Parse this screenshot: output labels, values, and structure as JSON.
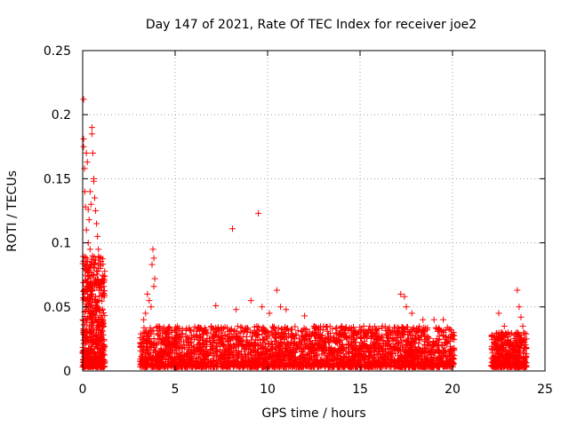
{
  "chart_data": {
    "type": "scatter",
    "title": "Day 147 of 2021, Rate Of TEC Index for receiver joe2",
    "xlabel": "GPS time / hours",
    "ylabel": "ROTI / TECUs",
    "xlim": [
      0,
      25
    ],
    "ylim": [
      0,
      0.25
    ],
    "x_ticks": [
      0,
      5,
      10,
      15,
      20,
      25
    ],
    "x_tick_labels": [
      "0",
      "5",
      "10",
      "15",
      "20",
      "25"
    ],
    "y_ticks": [
      0,
      0.05,
      0.1,
      0.15,
      0.2,
      0.25
    ],
    "y_tick_labels": [
      "0",
      "0.05",
      "0.1",
      "0.15",
      "0.2",
      "0.25"
    ],
    "grid": true,
    "marker": "+",
    "color": "#ff0000",
    "series": [
      {
        "name": "ROTI",
        "points": [
          [
            0.05,
            0.212
          ],
          [
            0.05,
            0.181
          ],
          [
            0.05,
            0.175
          ],
          [
            0.1,
            0.158
          ],
          [
            0.12,
            0.14
          ],
          [
            0.15,
            0.128
          ],
          [
            0.2,
            0.17
          ],
          [
            0.25,
            0.163
          ],
          [
            0.3,
            0.126
          ],
          [
            0.35,
            0.118
          ],
          [
            0.4,
            0.14
          ],
          [
            0.45,
            0.13
          ],
          [
            0.5,
            0.19
          ],
          [
            0.5,
            0.185
          ],
          [
            0.55,
            0.17
          ],
          [
            0.6,
            0.148
          ],
          [
            0.6,
            0.15
          ],
          [
            0.65,
            0.135
          ],
          [
            0.7,
            0.125
          ],
          [
            0.75,
            0.115
          ],
          [
            0.8,
            0.105
          ],
          [
            0.85,
            0.095
          ],
          [
            0.9,
            0.088
          ],
          [
            0.95,
            0.08
          ],
          [
            0.2,
            0.11
          ],
          [
            0.3,
            0.1
          ],
          [
            0.4,
            0.095
          ],
          [
            0.5,
            0.085
          ],
          [
            0.6,
            0.075
          ],
          [
            0.7,
            0.07
          ],
          [
            0.1,
            0.06
          ],
          [
            0.2,
            0.055
          ],
          [
            0.3,
            0.065
          ],
          [
            0.4,
            0.05
          ],
          [
            0.5,
            0.06
          ],
          [
            0.6,
            0.045
          ],
          [
            0.7,
            0.04
          ],
          [
            0.8,
            0.05
          ],
          [
            0.9,
            0.035
          ],
          [
            1.0,
            0.03
          ],
          [
            1.05,
            0.02
          ],
          [
            0.15,
            0.03
          ],
          [
            3.5,
            0.06
          ],
          [
            3.6,
            0.055
          ],
          [
            3.7,
            0.05
          ],
          [
            3.8,
            0.095
          ],
          [
            3.85,
            0.088
          ],
          [
            3.75,
            0.083
          ],
          [
            3.4,
            0.045
          ],
          [
            3.3,
            0.04
          ],
          [
            3.9,
            0.072
          ],
          [
            3.85,
            0.066
          ],
          [
            7.2,
            0.051
          ],
          [
            8.1,
            0.111
          ],
          [
            8.3,
            0.048
          ],
          [
            9.1,
            0.055
          ],
          [
            9.5,
            0.123
          ],
          [
            9.7,
            0.05
          ],
          [
            10.1,
            0.045
          ],
          [
            10.5,
            0.063
          ],
          [
            10.7,
            0.05
          ],
          [
            11.0,
            0.048
          ],
          [
            12.0,
            0.043
          ],
          [
            13.0,
            0.032
          ],
          [
            14.0,
            0.035
          ],
          [
            15.2,
            0.035
          ],
          [
            16.0,
            0.033
          ],
          [
            17.2,
            0.06
          ],
          [
            17.4,
            0.058
          ],
          [
            17.5,
            0.05
          ],
          [
            17.8,
            0.045
          ],
          [
            18.4,
            0.04
          ],
          [
            19.0,
            0.04
          ],
          [
            19.5,
            0.04
          ],
          [
            20.0,
            0.025
          ],
          [
            22.5,
            0.045
          ],
          [
            22.8,
            0.035
          ],
          [
            23.0,
            0.03
          ],
          [
            23.5,
            0.063
          ],
          [
            23.6,
            0.05
          ],
          [
            23.7,
            0.042
          ],
          [
            23.8,
            0.035
          ],
          [
            24.0,
            0.025
          ]
        ]
      }
    ],
    "dense_segments": [
      {
        "x_start": 0.0,
        "x_end": 1.2,
        "y_min": 0.003,
        "y_max": 0.09,
        "count": 600
      },
      {
        "x_start": 3.1,
        "x_end": 20.1,
        "y_min": 0.003,
        "y_max": 0.035,
        "count": 3200
      },
      {
        "x_start": 22.1,
        "x_end": 24.0,
        "y_min": 0.003,
        "y_max": 0.03,
        "count": 450
      }
    ]
  }
}
